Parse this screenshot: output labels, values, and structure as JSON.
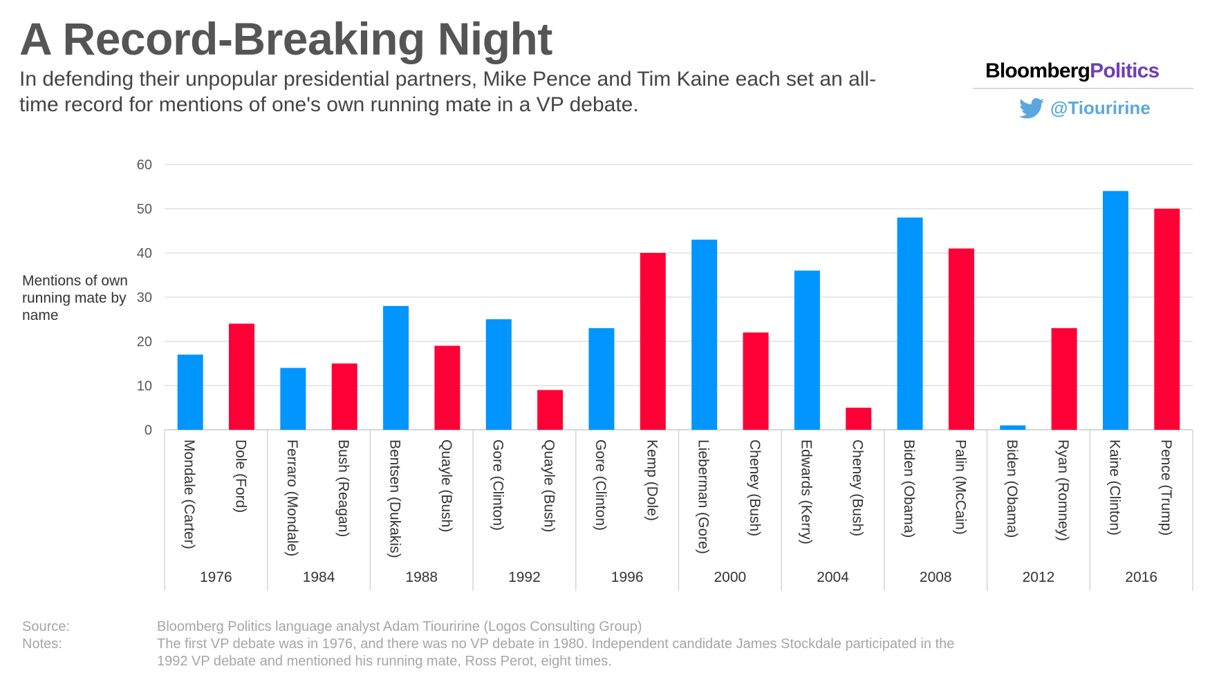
{
  "header": {
    "title": "A Record-Breaking Night",
    "subtitle": "In defending their unpopular presidential partners, Mike Pence and Tim Kaine each set an all-time record for mentions of one's own running mate in a VP debate."
  },
  "branding": {
    "logo_part1": "Bloomberg",
    "logo_part2": "Politics",
    "twitter_handle": "@Tiouririne",
    "icon": "twitter-bird-icon"
  },
  "colors": {
    "democrat": "#0095ff",
    "republican": "#ff0036",
    "grid": "#d9d9d9"
  },
  "chart_data": {
    "type": "bar",
    "ylabel": "Mentions of own running mate by name",
    "ylim": [
      0,
      60
    ],
    "yticks": [
      0,
      10,
      20,
      30,
      40,
      50,
      60
    ],
    "grid": true,
    "groups": [
      {
        "year": "1976",
        "bars": [
          {
            "label": "Mondale (Carter)",
            "value": 17,
            "party": "D"
          },
          {
            "label": "Dole (Ford)",
            "value": 24,
            "party": "R"
          }
        ]
      },
      {
        "year": "1984",
        "bars": [
          {
            "label": "Ferraro (Mondale)",
            "value": 14,
            "party": "D"
          },
          {
            "label": "Bush (Reagan)",
            "value": 15,
            "party": "R"
          }
        ]
      },
      {
        "year": "1988",
        "bars": [
          {
            "label": "Bentsen (Dukakis)",
            "value": 28,
            "party": "D"
          },
          {
            "label": "Quayle (Bush)",
            "value": 19,
            "party": "R"
          }
        ]
      },
      {
        "year": "1992",
        "bars": [
          {
            "label": "Gore (Clinton)",
            "value": 25,
            "party": "D"
          },
          {
            "label": "Quayle (Bush)",
            "value": 9,
            "party": "R"
          }
        ]
      },
      {
        "year": "1996",
        "bars": [
          {
            "label": "Gore (Clinton)",
            "value": 23,
            "party": "D"
          },
          {
            "label": "Kemp (Dole)",
            "value": 40,
            "party": "R"
          }
        ]
      },
      {
        "year": "2000",
        "bars": [
          {
            "label": "Lieberman (Gore)",
            "value": 43,
            "party": "D"
          },
          {
            "label": "Cheney (Bush)",
            "value": 22,
            "party": "R"
          }
        ]
      },
      {
        "year": "2004",
        "bars": [
          {
            "label": "Edwards (Kerry)",
            "value": 36,
            "party": "D"
          },
          {
            "label": "Cheney (Bush)",
            "value": 5,
            "party": "R"
          }
        ]
      },
      {
        "year": "2008",
        "bars": [
          {
            "label": "Biden (Obama)",
            "value": 48,
            "party": "D"
          },
          {
            "label": "Palin (McCain)",
            "value": 41,
            "party": "R"
          }
        ]
      },
      {
        "year": "2012",
        "bars": [
          {
            "label": "Biden (Obama)",
            "value": 1,
            "party": "D"
          },
          {
            "label": "Ryan (Romney)",
            "value": 23,
            "party": "R"
          }
        ]
      },
      {
        "year": "2016",
        "bars": [
          {
            "label": "Kaine (Clinton)",
            "value": 54,
            "party": "D"
          },
          {
            "label": "Pence (Trump)",
            "value": 50,
            "party": "R"
          }
        ]
      }
    ]
  },
  "footer": {
    "source_label": "Source:",
    "source_text": "Bloomberg Politics language analyst Adam Tiouririne (Logos Consulting Group)",
    "notes_label": "Notes:",
    "notes_text": "The first VP debate was in 1976, and there was no VP debate in 1980. Independent candidate James Stockdale participated in the 1992 VP debate and mentioned his running mate, Ross Perot, eight times."
  }
}
